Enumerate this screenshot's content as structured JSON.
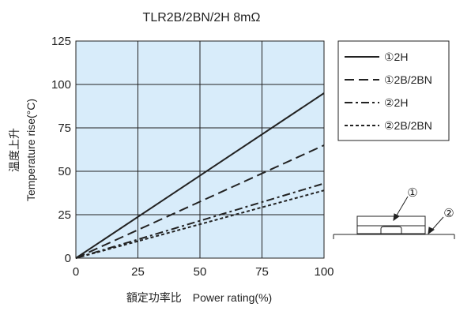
{
  "chart_data": {
    "type": "line",
    "title": "TLR2B/2BN/2H 8mΩ",
    "xlabel": "額定功率比　Power rating(%)",
    "ylabel_cn": "温度上升",
    "ylabel_en": "Temperature rise(°C)",
    "xlim": [
      0,
      100
    ],
    "ylim": [
      0,
      125
    ],
    "x_ticks": [
      0,
      25,
      50,
      75,
      100
    ],
    "y_ticks": [
      0,
      25,
      50,
      75,
      100,
      125
    ],
    "grid": true,
    "plot_background": "#d8ecfa",
    "legend_position": "right",
    "series": [
      {
        "name": "①2H",
        "dash": "solid",
        "x": [
          0,
          100
        ],
        "y": [
          0,
          95
        ]
      },
      {
        "name": "①2B/2BN",
        "dash": "dashed",
        "x": [
          0,
          100
        ],
        "y": [
          0,
          65
        ]
      },
      {
        "name": "②2H",
        "dash": "dash-dot",
        "x": [
          0,
          100
        ],
        "y": [
          0,
          43
        ]
      },
      {
        "name": "②2B/2BN",
        "dash": "dotted",
        "x": [
          0,
          100
        ],
        "y": [
          0,
          39
        ]
      }
    ],
    "diagram_labels": [
      "①",
      "②"
    ]
  }
}
